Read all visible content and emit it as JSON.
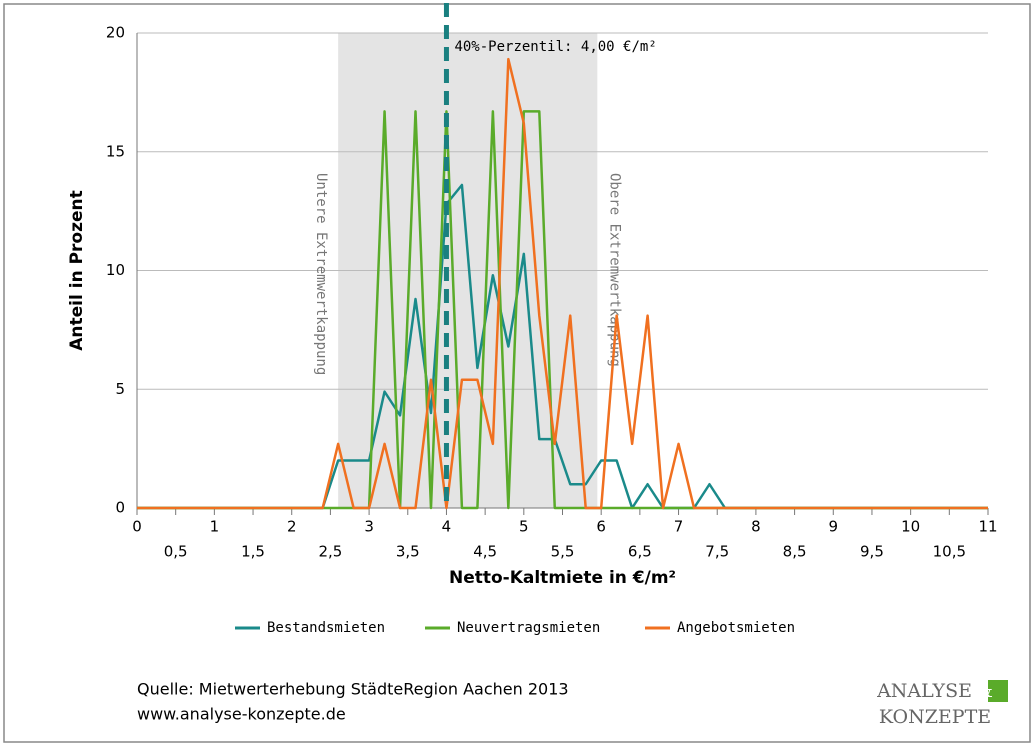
{
  "chart_data": {
    "type": "line",
    "x": [
      0,
      0.2,
      0.4,
      0.6,
      0.8,
      1,
      1.2,
      1.4,
      1.6,
      1.8,
      2,
      2.2,
      2.4,
      2.6,
      2.8,
      3,
      3.2,
      3.4,
      3.6,
      3.8,
      4,
      4.2,
      4.4,
      4.6,
      4.8,
      5,
      5.2,
      5.4,
      5.6,
      5.8,
      6,
      6.2,
      6.4,
      6.6,
      6.8,
      7,
      7.2,
      7.4,
      7.6,
      7.8,
      8,
      8.2,
      8.4,
      8.6,
      8.8,
      9,
      9.2,
      9.4,
      9.6,
      9.8,
      10,
      10.2,
      10.4,
      10.6,
      10.8,
      11
    ],
    "series": [
      {
        "name": "Bestandsmieten",
        "color": "#1a8a8a",
        "values": [
          0,
          0,
          0,
          0,
          0,
          0,
          0,
          0,
          0,
          0,
          0,
          0,
          0,
          2,
          2,
          2,
          4.9,
          3.9,
          8.8,
          4,
          12.8,
          13.6,
          5.9,
          9.8,
          6.8,
          10.7,
          2.9,
          2.9,
          1,
          1,
          2,
          2,
          0,
          1,
          0,
          0,
          0,
          1,
          0,
          0,
          0,
          0,
          0,
          0,
          0,
          0,
          0,
          0,
          0,
          0,
          0,
          0,
          0,
          0,
          0,
          0
        ]
      },
      {
        "name": "Neuvertragsmieten",
        "color": "#5aab2a",
        "values": [
          0,
          0,
          0,
          0,
          0,
          0,
          0,
          0,
          0,
          0,
          0,
          0,
          0,
          0,
          0,
          0,
          16.7,
          0,
          16.7,
          0,
          16.7,
          0,
          0,
          16.7,
          0,
          16.7,
          16.7,
          0,
          0,
          0,
          0,
          0,
          0,
          0,
          0,
          0,
          0,
          0,
          0,
          0,
          0,
          0,
          0,
          0,
          0,
          0,
          0,
          0,
          0,
          0,
          0,
          0,
          0,
          0,
          0,
          0
        ]
      },
      {
        "name": "Angebotsmieten",
        "color": "#f07020",
        "values": [
          0,
          0,
          0,
          0,
          0,
          0,
          0,
          0,
          0,
          0,
          0,
          0,
          0,
          2.7,
          0,
          0,
          2.7,
          0,
          0,
          5.4,
          0,
          5.4,
          5.4,
          2.7,
          18.9,
          16.2,
          8.1,
          2.7,
          8.1,
          0,
          0,
          8.1,
          2.7,
          8.1,
          0,
          2.7,
          0,
          0,
          0,
          0,
          0,
          0,
          0,
          0,
          0,
          0,
          0,
          0,
          0,
          0,
          0,
          0,
          0,
          0,
          0,
          0
        ]
      }
    ],
    "xlim": [
      0,
      11
    ],
    "ylim": [
      0,
      20
    ],
    "yticks": [
      0,
      5,
      10,
      15,
      20
    ],
    "xticks": [
      0,
      {
        "value": 0.5,
        "label": "0,5"
      },
      1,
      {
        "value": 1.5,
        "label": "1,5"
      },
      2,
      {
        "value": 2.5,
        "label": "2,5"
      },
      3,
      {
        "value": 3.5,
        "label": "3,5"
      },
      4,
      {
        "value": 4.5,
        "label": "4,5"
      },
      5,
      {
        "value": 5.5,
        "label": "5,5"
      },
      6,
      {
        "value": 6.5,
        "label": "6,5"
      },
      7,
      {
        "value": 7.5,
        "label": "7,5"
      },
      8,
      {
        "value": 8.5,
        "label": "8,5"
      },
      9,
      {
        "value": 9.5,
        "label": "9,5"
      },
      10,
      {
        "value": 10.5,
        "label": "10,5"
      },
      11
    ],
    "grid": true,
    "xlabel": "Netto-Kaltmiete in €/m²",
    "ylabel": "Anteil in Prozent",
    "lower_cap": {
      "value": 2.6,
      "label": "Untere Extremwertkappung"
    },
    "upper_cap": {
      "value": 5.95,
      "label": "Obere Extremwertkappung"
    },
    "percentile": {
      "value": 4,
      "label": "40%-Perzentil: 4,00 €/m²"
    },
    "source": "Quelle: Mietwerterhebung StädteRegion Aachen 2013",
    "url": "www.analyse-konzepte.de",
    "logo": [
      "ANALYSE",
      "&",
      "KONZEPTE"
    ]
  }
}
